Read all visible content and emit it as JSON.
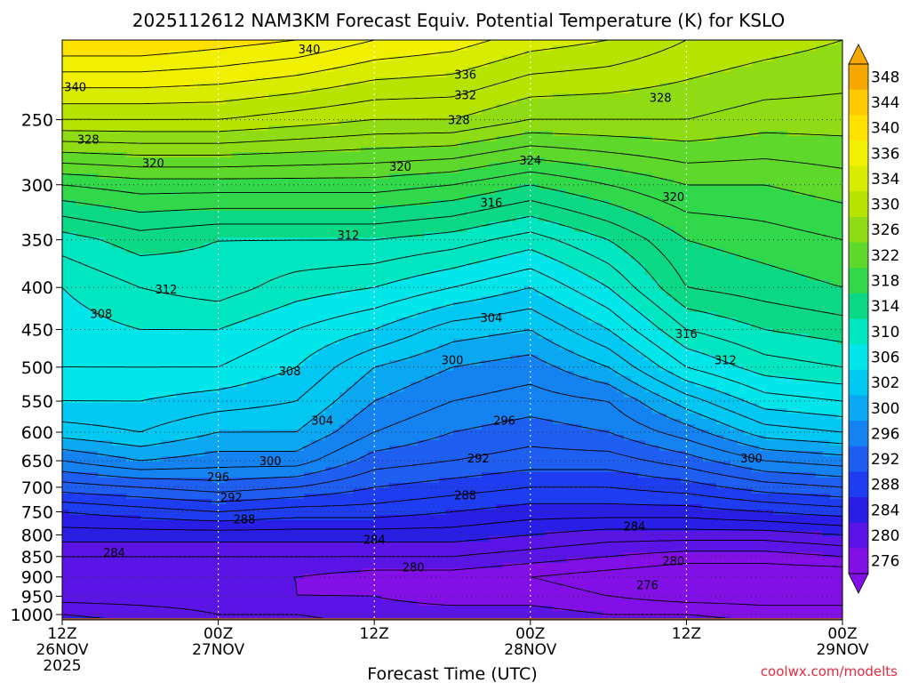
{
  "chart_data": {
    "type": "heatmap",
    "title": "2025112612 NAM3KM Forecast Equiv. Potential Temperature (K) for KSLO",
    "xlabel": "Forecast Time (UTC)",
    "ylabel": "",
    "credit": "coolwx.com/modelts",
    "x_range_hours": [
      0,
      60
    ],
    "x_ticks": [
      {
        "hour": 0,
        "lines": [
          "12Z",
          "26NOV",
          "2025"
        ]
      },
      {
        "hour": 12,
        "lines": [
          "00Z",
          "27NOV"
        ]
      },
      {
        "hour": 24,
        "lines": [
          "12Z"
        ]
      },
      {
        "hour": 36,
        "lines": [
          "00Z",
          "28NOV"
        ]
      },
      {
        "hour": 48,
        "lines": [
          "12Z"
        ]
      },
      {
        "hour": 60,
        "lines": [
          "00Z",
          "29NOV"
        ]
      }
    ],
    "y_axis": {
      "type": "pressure-log",
      "range_hpa": [
        1015,
        200
      ],
      "inverted": true
    },
    "y_ticks": [
      250,
      300,
      350,
      400,
      450,
      500,
      550,
      600,
      650,
      700,
      750,
      800,
      850,
      900,
      950,
      1000
    ],
    "ground_level_hpa": 1010,
    "ground_color": "#a0522d",
    "colorbar": {
      "labels": [
        348,
        344,
        340,
        336,
        334,
        330,
        326,
        322,
        318,
        314,
        310,
        306,
        302,
        300,
        296,
        292,
        288,
        284,
        280,
        276
      ],
      "colors": [
        "#f5a800",
        "#ffc800",
        "#ffe100",
        "#f0f000",
        "#d7ec00",
        "#b6e400",
        "#8fdc14",
        "#5ed82a",
        "#30d84a",
        "#0ad885",
        "#00e6c0",
        "#00e6ea",
        "#00c8f2",
        "#0aa8f0",
        "#1482f0",
        "#1e5ef0",
        "#1e3cf0",
        "#281ee6",
        "#5a14e6",
        "#8210e6"
      ]
    },
    "profiles": {
      "hours": [
        0,
        6,
        12,
        18,
        24,
        30,
        36,
        42,
        48,
        54,
        60
      ],
      "pressure_hpa": [
        1000,
        950,
        900,
        850,
        800,
        750,
        700,
        650,
        600,
        550,
        500,
        450,
        400,
        350,
        300,
        250,
        200
      ],
      "theta_e_K": [
        [
          284,
          281,
          280,
          282,
          285,
          288,
          293,
          298,
          303,
          306,
          308,
          309,
          310,
          313,
          320,
          332,
          342
        ],
        [
          283,
          281,
          280,
          282,
          285,
          289,
          294,
          300,
          304,
          306,
          308,
          310,
          312,
          315,
          321,
          332,
          342
        ],
        [
          282,
          281,
          280,
          282,
          285,
          290,
          295,
          299,
          302,
          305,
          308,
          310,
          313,
          314,
          321,
          332,
          341
        ],
        [
          282,
          280,
          280,
          282,
          285,
          289,
          294,
          299,
          302,
          304,
          306,
          308,
          311,
          314,
          321,
          331,
          340
        ],
        [
          281,
          280,
          279,
          282,
          285,
          289,
          292,
          295,
          298,
          300,
          302,
          306,
          310,
          314,
          321,
          330,
          338
        ],
        [
          281,
          279,
          279,
          282,
          285,
          288,
          291,
          294,
          296,
          298,
          300,
          303,
          308,
          313,
          320,
          330,
          337
        ],
        [
          281,
          279,
          278,
          281,
          284,
          287,
          290,
          293,
          295,
          297,
          299,
          302,
          306,
          311,
          318,
          328,
          335
        ],
        [
          280,
          278,
          277,
          280,
          283,
          287,
          290,
          293,
          296,
          298,
          302,
          306,
          310,
          314,
          320,
          328,
          334
        ],
        [
          280,
          277,
          276,
          279,
          283,
          287,
          291,
          295,
          299,
          303,
          308,
          312,
          316,
          318,
          322,
          328,
          332
        ],
        [
          279,
          277,
          276,
          279,
          283,
          288,
          293,
          298,
          303,
          307,
          311,
          314,
          317,
          319,
          322,
          327,
          331
        ],
        [
          279,
          277,
          276,
          280,
          284,
          289,
          294,
          299,
          304,
          308,
          312,
          315,
          318,
          320,
          323,
          327,
          330
        ]
      ]
    },
    "contour_labels": [
      {
        "value": 340,
        "hour": 19,
        "p": 205
      },
      {
        "value": 340,
        "hour": 1,
        "p": 228
      },
      {
        "value": 336,
        "hour": 31,
        "p": 220
      },
      {
        "value": 332,
        "hour": 31,
        "p": 233
      },
      {
        "value": 328,
        "hour": 30.5,
        "p": 250
      },
      {
        "value": 328,
        "hour": 46,
        "p": 235
      },
      {
        "value": 328,
        "hour": 2,
        "p": 264
      },
      {
        "value": 324,
        "hour": 36,
        "p": 280
      },
      {
        "value": 320,
        "hour": 7,
        "p": 282
      },
      {
        "value": 320,
        "hour": 26,
        "p": 285
      },
      {
        "value": 320,
        "hour": 47,
        "p": 310
      },
      {
        "value": 316,
        "hour": 33,
        "p": 315
      },
      {
        "value": 312,
        "hour": 22,
        "p": 345
      },
      {
        "value": 312,
        "hour": 8,
        "p": 402
      },
      {
        "value": 308,
        "hour": 3,
        "p": 430
      },
      {
        "value": 308,
        "hour": 17.5,
        "p": 505
      },
      {
        "value": 304,
        "hour": 33,
        "p": 435
      },
      {
        "value": 304,
        "hour": 20,
        "p": 580
      },
      {
        "value": 300,
        "hour": 30,
        "p": 490
      },
      {
        "value": 300,
        "hour": 16,
        "p": 650
      },
      {
        "value": 300,
        "hour": 53,
        "p": 645
      },
      {
        "value": 316,
        "hour": 48,
        "p": 455
      },
      {
        "value": 312,
        "hour": 51,
        "p": 490
      },
      {
        "value": 296,
        "hour": 34,
        "p": 580
      },
      {
        "value": 296,
        "hour": 12,
        "p": 680
      },
      {
        "value": 292,
        "hour": 32,
        "p": 645
      },
      {
        "value": 292,
        "hour": 13,
        "p": 720
      },
      {
        "value": 288,
        "hour": 31,
        "p": 715
      },
      {
        "value": 288,
        "hour": 14,
        "p": 765
      },
      {
        "value": 284,
        "hour": 24,
        "p": 810
      },
      {
        "value": 284,
        "hour": 44,
        "p": 780
      },
      {
        "value": 284,
        "hour": 4,
        "p": 840
      },
      {
        "value": 280,
        "hour": 27,
        "p": 875
      },
      {
        "value": 280,
        "hour": 47,
        "p": 860
      },
      {
        "value": 276,
        "hour": 45,
        "p": 920
      }
    ]
  }
}
